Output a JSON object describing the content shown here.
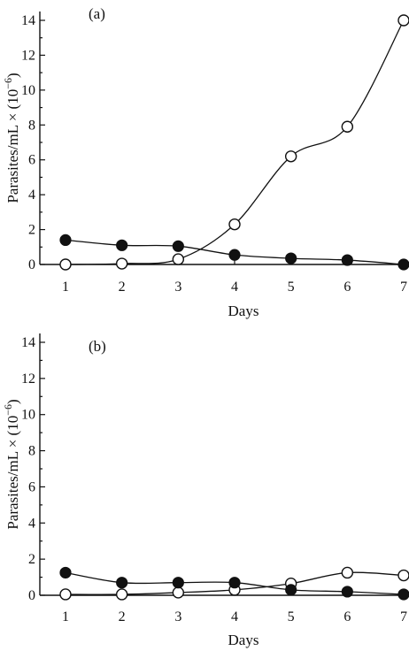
{
  "chart_data": [
    {
      "type": "line",
      "panel_label": "(a)",
      "xlabel": "Days",
      "ylabel": "Parasites/mL × (10",
      "ylabel_sup": "−6",
      "ylabel_close": ")",
      "xlim": [
        1,
        7
      ],
      "ylim": [
        0,
        15
      ],
      "x_ticks": [
        1,
        2,
        3,
        4,
        5,
        6,
        7
      ],
      "y_ticks": [
        0,
        2,
        4,
        6,
        8,
        10,
        12,
        14
      ],
      "x": [
        1,
        2,
        3,
        4,
        5,
        6,
        7
      ],
      "series": [
        {
          "marker": "open-circle",
          "values": [
            0.0,
            0.05,
            0.3,
            2.3,
            6.2,
            7.9,
            14.0
          ]
        },
        {
          "marker": "filled-circle",
          "values": [
            1.4,
            1.1,
            1.05,
            0.55,
            0.35,
            0.25,
            0.0
          ]
        }
      ],
      "grid": false
    },
    {
      "type": "line",
      "panel_label": "(b)",
      "xlabel": "Days",
      "ylabel": "Parasites/mL × (10",
      "ylabel_sup": "−6",
      "ylabel_close": ")",
      "xlim": [
        1,
        7
      ],
      "ylim": [
        0,
        15
      ],
      "x_ticks": [
        1,
        2,
        3,
        4,
        5,
        6,
        7
      ],
      "y_ticks": [
        0,
        2,
        4,
        6,
        8,
        10,
        12,
        14
      ],
      "x": [
        1,
        2,
        3,
        4,
        5,
        6,
        7
      ],
      "series": [
        {
          "marker": "open-circle",
          "values": [
            0.05,
            0.05,
            0.15,
            0.3,
            0.65,
            1.25,
            1.1
          ]
        },
        {
          "marker": "filled-circle",
          "values": [
            1.25,
            0.7,
            0.7,
            0.7,
            0.3,
            0.2,
            0.05
          ]
        }
      ],
      "grid": false
    }
  ]
}
